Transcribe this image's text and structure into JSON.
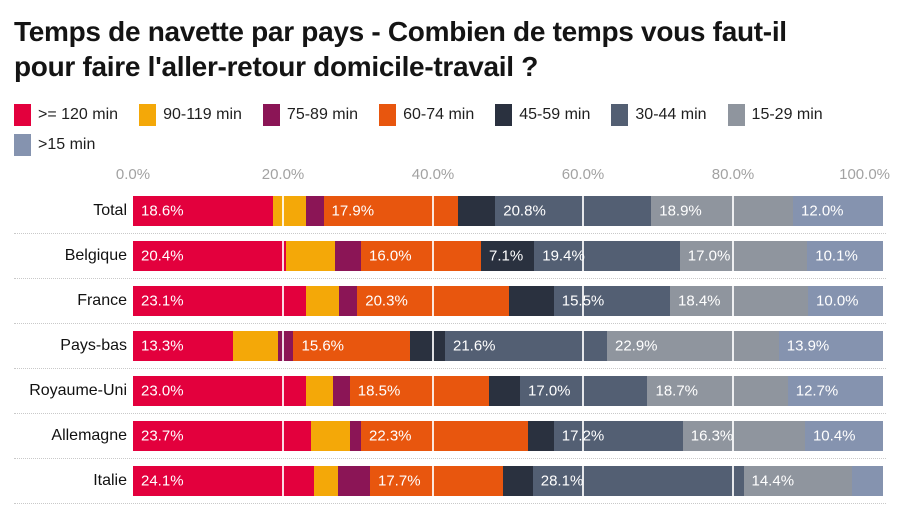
{
  "title": "Temps de navette par pays - Combien de temps vous faut-il pour faire l'aller-retour domicile-travail ?",
  "axis": {
    "ticks": [
      "0.0%",
      "20.0%",
      "40.0%",
      "60.0%",
      "80.0%",
      "100.0%"
    ]
  },
  "chart_data": {
    "type": "bar",
    "orientation": "horizontal-stacked",
    "unit": "%",
    "xlim": [
      0,
      100
    ],
    "grid": "vertical-white-lines-at-20-40-60-80",
    "legend_position": "top",
    "categories": [
      "Total",
      "Belgique",
      "France",
      "Pays-bas",
      "Royaume-Uni",
      "Allemagne",
      "Italie"
    ],
    "series": [
      {
        "name": ">= 120 min",
        "color": "#e3003d",
        "values": [
          18.6,
          20.4,
          23.1,
          13.3,
          23.0,
          23.7,
          24.1
        ]
      },
      {
        "name": "90-119 min",
        "color": "#f4a808",
        "values": [
          4.4,
          6.5,
          4.4,
          6.0,
          3.7,
          5.2,
          3.2
        ]
      },
      {
        "name": "75-89 min",
        "color": "#8b1556",
        "values": [
          2.4,
          3.5,
          2.4,
          2.1,
          2.2,
          1.5,
          4.3
        ]
      },
      {
        "name": "60-74 min",
        "color": "#e8560e",
        "values": [
          17.9,
          16.0,
          20.3,
          15.6,
          18.5,
          22.3,
          17.7
        ]
      },
      {
        "name": "45-59 min",
        "color": "#2a313f",
        "values": [
          5.0,
          7.1,
          5.9,
          4.6,
          4.2,
          3.4,
          4.0
        ]
      },
      {
        "name": "30-44 min",
        "color": "#535f73",
        "values": [
          20.8,
          19.4,
          15.5,
          21.6,
          17.0,
          17.2,
          28.1
        ]
      },
      {
        "name": "15-29 min",
        "color": "#8f959e",
        "values": [
          18.9,
          17.0,
          18.4,
          22.9,
          18.7,
          16.3,
          14.4
        ]
      },
      {
        "name": ">15 min",
        "color": "#8593af",
        "values": [
          12.0,
          10.1,
          10.0,
          13.9,
          12.7,
          10.4,
          4.2
        ]
      }
    ]
  }
}
